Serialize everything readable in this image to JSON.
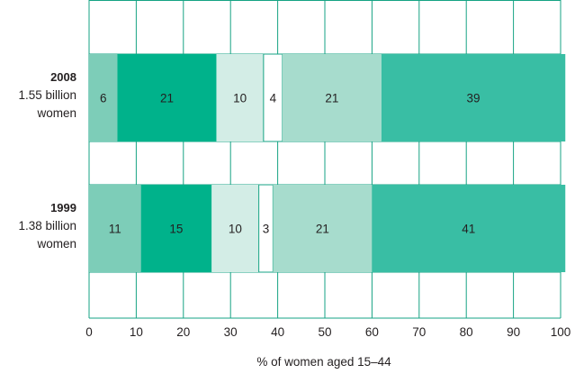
{
  "chart_data": {
    "type": "bar",
    "orientation": "horizontal",
    "stacked": true,
    "categories": [
      {
        "title": "2008",
        "lines": [
          "1.55 billion",
          "women"
        ]
      },
      {
        "title": "1999",
        "lines": [
          "1.38 billion",
          "women"
        ]
      }
    ],
    "segments": [
      [
        6,
        21,
        10,
        4,
        21,
        39
      ],
      [
        11,
        15,
        10,
        3,
        21,
        41
      ]
    ],
    "segment_colors": [
      "#7dcdb8",
      "#00b28b",
      "#d3ede6",
      "#ffffff",
      "#a7dccd",
      "#39bea4"
    ],
    "xlim": [
      0,
      100
    ],
    "xticks": [
      0,
      10,
      20,
      30,
      40,
      50,
      60,
      70,
      80,
      90,
      100
    ],
    "xlabel": "% of women aged 15–44",
    "grid": true,
    "grid_color": "#16a384"
  }
}
